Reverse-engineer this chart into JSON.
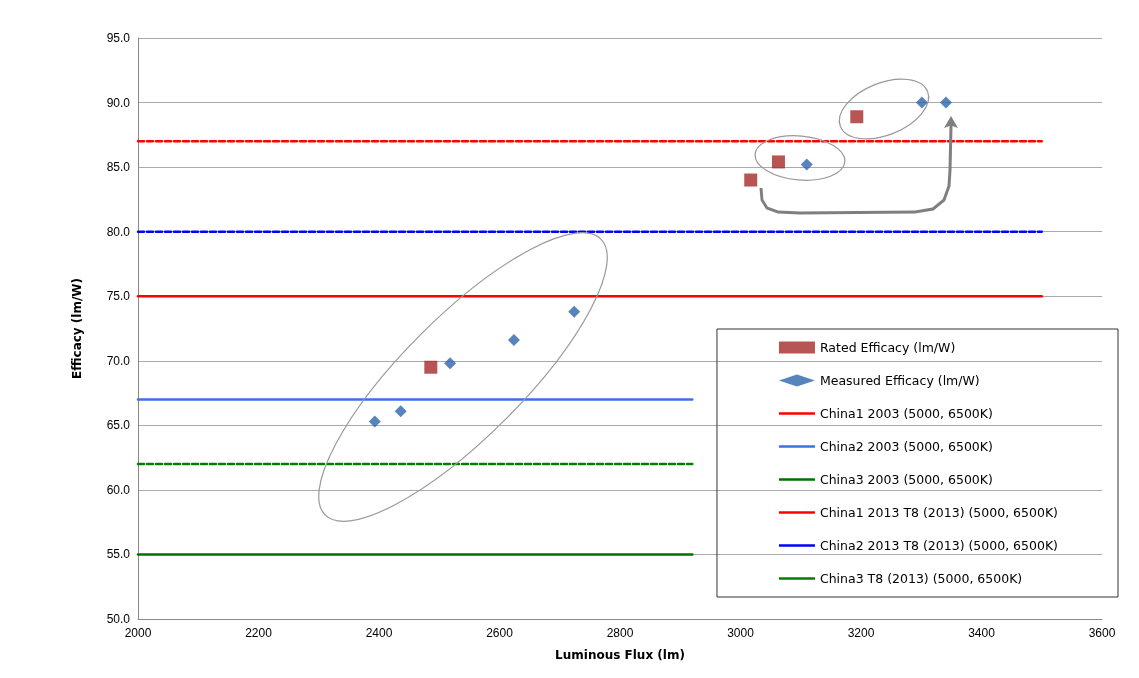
{
  "chart_data": {
    "type": "scatter",
    "xlabel": "Luminous Flux (lm)",
    "ylabel": "Efficacy (lm/W)",
    "xlim": [
      2000,
      3600
    ],
    "xticks": [
      2000,
      2200,
      2400,
      2600,
      2800,
      3000,
      3200,
      3400,
      3600
    ],
    "ylim": [
      50,
      95
    ],
    "yticks": [
      {
        "value": 50,
        "label": "50.0"
      },
      {
        "value": 55,
        "label": "55.0"
      },
      {
        "value": 60,
        "label": "60.0"
      },
      {
        "value": 65,
        "label": "65.0"
      },
      {
        "value": 70,
        "label": "70.0"
      },
      {
        "value": 75,
        "label": "75.0"
      },
      {
        "value": 80,
        "label": "80.0"
      },
      {
        "value": 85,
        "label": "85.0"
      },
      {
        "value": 90,
        "label": "90.0"
      },
      {
        "value": 95,
        "label": "95.0"
      }
    ],
    "grid": "y",
    "legend": "bottom right",
    "series": [
      {
        "name": "Rated Efficacy (lm/W)",
        "marker": "square",
        "color": "#a52a2a",
        "x": [
          2486,
          3017,
          3063,
          3193
        ],
        "values": [
          69.5,
          84.0,
          85.4,
          88.9
        ]
      },
      {
        "name": "Measured Efficacy (lm/W)",
        "marker": "diamond",
        "color": "#2e65ad",
        "x": [
          2393,
          2436,
          2518,
          2624,
          2724,
          3110,
          3301,
          3341
        ],
        "values": [
          65.3,
          66.1,
          69.8,
          71.6,
          73.8,
          85.2,
          90.0,
          90.0
        ]
      },
      {
        "name": "China1 2003 (5000, 6500K)",
        "type": "line",
        "line_style": "solid",
        "color": "#ff0000",
        "x": [
          2000,
          3500
        ],
        "values": [
          75,
          75
        ]
      },
      {
        "name": "China2 2003 (5000, 6500K)",
        "type": "line",
        "line_style": "solid",
        "color": "#3f6fe6",
        "x": [
          2000,
          2920
        ],
        "values": [
          67,
          67
        ]
      },
      {
        "name": "China3 2003 (5000, 6500K)",
        "type": "line",
        "line_style": "solid",
        "color": "#007000",
        "x": [
          2000,
          2920
        ],
        "values": [
          55,
          55
        ]
      },
      {
        "name": "China1 2013 T8 (2013) (5000, 6500K)",
        "type": "line",
        "line_style": "dashed",
        "color": "#ff0000",
        "x": [
          2000,
          3500
        ],
        "values": [
          87,
          87
        ]
      },
      {
        "name": "China2 2013 T8 (2013) (5000, 6500K)",
        "type": "line",
        "line_style": "dashed",
        "color": "#0000ff",
        "x": [
          2000,
          3500
        ],
        "values": [
          80,
          80
        ]
      },
      {
        "name": "China3 T8 (2013) (5000, 6500K)",
        "type": "line",
        "line_style": "dashed",
        "color": "#008000",
        "x": [
          2000,
          2920
        ],
        "values": [
          62,
          62
        ]
      }
    ]
  }
}
